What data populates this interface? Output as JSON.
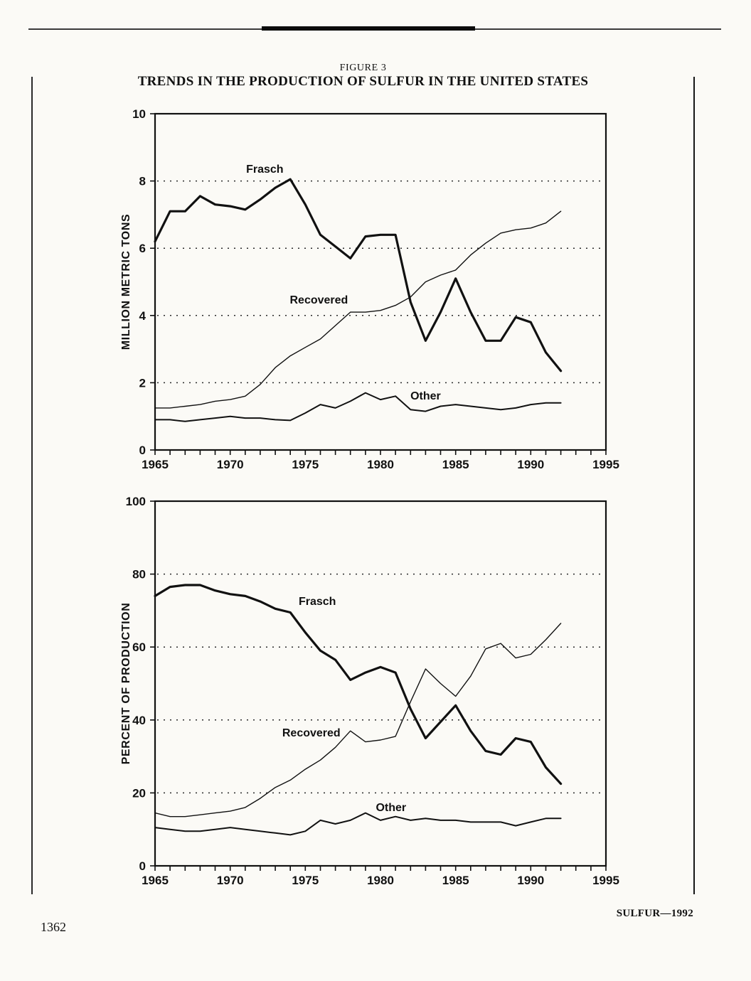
{
  "page": {
    "figure_label": "FIGURE 3",
    "title": "TRENDS IN THE PRODUCTION OF SULFUR IN THE UNITED STATES",
    "footer": "SULFUR—1992",
    "page_number": "1362"
  },
  "chart_data": [
    {
      "type": "line",
      "title": "Trends in the production of sulfur in the United States — quantity",
      "xlabel": "",
      "ylabel": "MILLION METRIC TONS",
      "xlim": [
        1965,
        1995
      ],
      "ylim": [
        0,
        10
      ],
      "xticks": [
        1965,
        1970,
        1975,
        1980,
        1985,
        1990,
        1995
      ],
      "yticks": [
        0,
        2,
        4,
        6,
        8,
        10
      ],
      "gridlines_y": [
        2,
        4,
        6,
        8
      ],
      "grid": "dotted horizontal",
      "legend": "inline labels on lines",
      "line_color": "#111111",
      "x": [
        1965,
        1966,
        1967,
        1968,
        1969,
        1970,
        1971,
        1972,
        1973,
        1974,
        1975,
        1976,
        1977,
        1978,
        1979,
        1980,
        1981,
        1982,
        1983,
        1984,
        1985,
        1986,
        1987,
        1988,
        1989,
        1990,
        1991,
        1992
      ],
      "series": [
        {
          "name": "Frasch",
          "stroke_width": 3.2,
          "label_at": [
            1972.3,
            8.25
          ],
          "values": [
            6.2,
            7.1,
            7.1,
            7.55,
            7.3,
            7.25,
            7.15,
            7.45,
            7.8,
            8.05,
            7.3,
            6.4,
            6.05,
            5.7,
            6.35,
            6.4,
            6.4,
            4.4,
            3.25,
            4.1,
            5.1,
            4.1,
            3.25,
            3.25,
            3.95,
            3.8,
            2.9,
            2.35
          ]
        },
        {
          "name": "Recovered",
          "stroke_width": 1.4,
          "label_at": [
            1975.9,
            4.35
          ],
          "values": [
            1.25,
            1.25,
            1.3,
            1.35,
            1.45,
            1.5,
            1.6,
            1.95,
            2.45,
            2.8,
            3.05,
            3.3,
            3.7,
            4.1,
            4.1,
            4.15,
            4.3,
            4.55,
            5.0,
            5.2,
            5.35,
            5.8,
            6.15,
            6.45,
            6.55,
            6.6,
            6.75,
            7.1
          ]
        },
        {
          "name": "Other",
          "stroke_width": 2,
          "label_at": [
            1983.0,
            1.5
          ],
          "values": [
            0.9,
            0.9,
            0.85,
            0.9,
            0.95,
            1.0,
            0.95,
            0.95,
            0.9,
            0.88,
            1.1,
            1.35,
            1.25,
            1.45,
            1.7,
            1.5,
            1.6,
            1.2,
            1.15,
            1.3,
            1.35,
            1.3,
            1.25,
            1.2,
            1.25,
            1.35,
            1.4,
            1.4
          ]
        }
      ]
    },
    {
      "type": "line",
      "title": "Trends in the production of sulfur in the United States — share",
      "xlabel": "",
      "ylabel": "PERCENT OF PRODUCTION",
      "xlim": [
        1965,
        1995
      ],
      "ylim": [
        0,
        100
      ],
      "xticks": [
        1965,
        1970,
        1975,
        1980,
        1985,
        1990,
        1995
      ],
      "yticks": [
        0,
        20,
        40,
        60,
        80,
        100
      ],
      "gridlines_y": [
        20,
        40,
        60,
        80
      ],
      "grid": "dotted horizontal",
      "legend": "inline labels on lines",
      "line_color": "#111111",
      "x": [
        1965,
        1966,
        1967,
        1968,
        1969,
        1970,
        1971,
        1972,
        1973,
        1974,
        1975,
        1976,
        1977,
        1978,
        1979,
        1980,
        1981,
        1982,
        1983,
        1984,
        1985,
        1986,
        1987,
        1988,
        1989,
        1990,
        1991,
        1992
      ],
      "series": [
        {
          "name": "Frasch",
          "stroke_width": 3.2,
          "label_at": [
            1975.8,
            71.5
          ],
          "values": [
            74,
            76.5,
            77,
            77,
            75.5,
            74.5,
            74,
            72.5,
            70.5,
            69.5,
            64,
            59,
            56.5,
            51,
            53,
            54.5,
            53,
            43,
            35,
            39.5,
            44,
            37,
            31.5,
            30.5,
            35,
            34,
            27,
            22.5
          ]
        },
        {
          "name": "Recovered",
          "stroke_width": 1.4,
          "label_at": [
            1975.4,
            35.5
          ],
          "values": [
            14.5,
            13.5,
            13.5,
            14,
            14.5,
            15,
            16,
            18.5,
            21.5,
            23.5,
            26.5,
            29,
            32.5,
            37,
            34,
            34.5,
            35.5,
            45,
            54,
            50,
            46.5,
            52,
            59.5,
            61,
            57,
            58,
            62,
            66.5
          ]
        },
        {
          "name": "Other",
          "stroke_width": 2,
          "label_at": [
            1980.7,
            15
          ],
          "values": [
            10.5,
            10,
            9.5,
            9.5,
            10,
            10.5,
            10,
            9.5,
            9,
            8.5,
            9.5,
            12.5,
            11.5,
            12.5,
            14.5,
            12.5,
            13.5,
            12.5,
            13,
            12.5,
            12.5,
            12,
            12,
            12,
            11,
            12,
            13,
            13
          ]
        }
      ]
    }
  ]
}
